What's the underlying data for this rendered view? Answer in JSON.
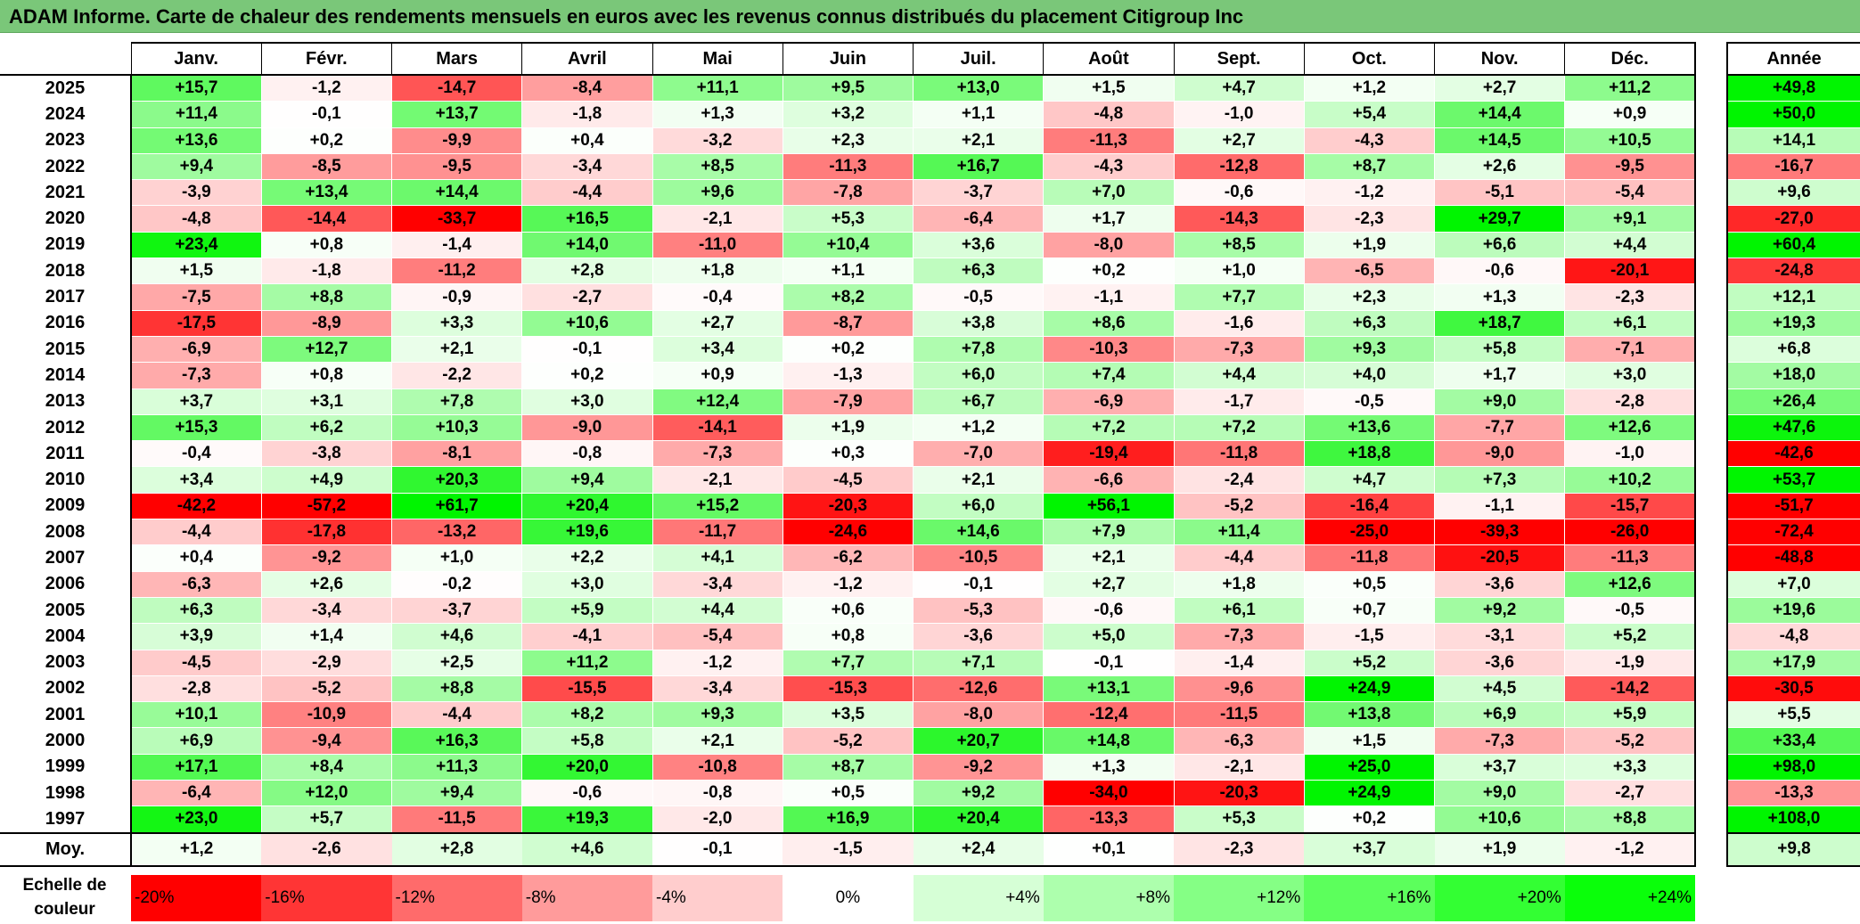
{
  "title": "ADAM Informe. Carte de chaleur des rendements mensuels en euros avec les revenus connus distribués du placement Citigroup Inc",
  "chart_data": {
    "type": "heatmap",
    "title": "ADAM Informe. Carte de chaleur des rendements mensuels en euros avec les revenus connus distribués du placement Citigroup Inc",
    "columns": [
      "Janv.",
      "Févr.",
      "Mars",
      "Avril",
      "Mai",
      "Juin",
      "Juil.",
      "Août",
      "Sept.",
      "Oct.",
      "Nov.",
      "Déc."
    ],
    "year_column_label": "Année",
    "rows": [
      {
        "year": "2025",
        "values": [
          "+15,7",
          "-1,2",
          "-14,7",
          "-8,4",
          "+11,1",
          "+9,5",
          "+13,0",
          "+1,5",
          "+4,7",
          "+1,2",
          "+2,7",
          "+11,2"
        ],
        "annual": "+49,8"
      },
      {
        "year": "2024",
        "values": [
          "+11,4",
          "-0,1",
          "+13,7",
          "-1,8",
          "+1,3",
          "+3,2",
          "+1,1",
          "-4,8",
          "-1,0",
          "+5,4",
          "+14,4",
          "+0,9"
        ],
        "annual": "+50,0"
      },
      {
        "year": "2023",
        "values": [
          "+13,6",
          "+0,2",
          "-9,9",
          "+0,4",
          "-3,2",
          "+2,3",
          "+2,1",
          "-11,3",
          "+2,7",
          "-4,3",
          "+14,5",
          "+10,5"
        ],
        "annual": "+14,1"
      },
      {
        "year": "2022",
        "values": [
          "+9,4",
          "-8,5",
          "-9,5",
          "-3,4",
          "+8,5",
          "-11,3",
          "+16,7",
          "-4,3",
          "-12,8",
          "+8,7",
          "+2,6",
          "-9,5"
        ],
        "annual": "-16,7"
      },
      {
        "year": "2021",
        "values": [
          "-3,9",
          "+13,4",
          "+14,4",
          "-4,4",
          "+9,6",
          "-7,8",
          "-3,7",
          "+7,0",
          "-0,6",
          "-1,2",
          "-5,1",
          "-5,4"
        ],
        "annual": "+9,6"
      },
      {
        "year": "2020",
        "values": [
          "-4,8",
          "-14,4",
          "-33,7",
          "+16,5",
          "-2,1",
          "+5,3",
          "-6,4",
          "+1,7",
          "-14,3",
          "-2,3",
          "+29,7",
          "+9,1"
        ],
        "annual": "-27,0"
      },
      {
        "year": "2019",
        "values": [
          "+23,4",
          "+0,8",
          "-1,4",
          "+14,0",
          "-11,0",
          "+10,4",
          "+3,6",
          "-8,0",
          "+8,5",
          "+1,9",
          "+6,6",
          "+4,4"
        ],
        "annual": "+60,4"
      },
      {
        "year": "2018",
        "values": [
          "+1,5",
          "-1,8",
          "-11,2",
          "+2,8",
          "+1,8",
          "+1,1",
          "+6,3",
          "+0,2",
          "+1,0",
          "-6,5",
          "-0,6",
          "-20,1"
        ],
        "annual": "-24,8"
      },
      {
        "year": "2017",
        "values": [
          "-7,5",
          "+8,8",
          "-0,9",
          "-2,7",
          "-0,4",
          "+8,2",
          "-0,5",
          "-1,1",
          "+7,7",
          "+2,3",
          "+1,3",
          "-2,3"
        ],
        "annual": "+12,1"
      },
      {
        "year": "2016",
        "values": [
          "-17,5",
          "-8,9",
          "+3,3",
          "+10,6",
          "+2,7",
          "-8,7",
          "+3,8",
          "+8,6",
          "-1,6",
          "+6,3",
          "+18,7",
          "+6,1"
        ],
        "annual": "+19,3"
      },
      {
        "year": "2015",
        "values": [
          "-6,9",
          "+12,7",
          "+2,1",
          "-0,1",
          "+3,4",
          "+0,2",
          "+7,8",
          "-10,3",
          "-7,3",
          "+9,3",
          "+5,8",
          "-7,1"
        ],
        "annual": "+6,8"
      },
      {
        "year": "2014",
        "values": [
          "-7,3",
          "+0,8",
          "-2,2",
          "+0,2",
          "+0,9",
          "-1,3",
          "+6,0",
          "+7,4",
          "+4,4",
          "+4,0",
          "+1,7",
          "+3,0"
        ],
        "annual": "+18,0"
      },
      {
        "year": "2013",
        "values": [
          "+3,7",
          "+3,1",
          "+7,8",
          "+3,0",
          "+12,4",
          "-7,9",
          "+6,7",
          "-6,9",
          "-1,7",
          "-0,5",
          "+9,0",
          "-2,8"
        ],
        "annual": "+26,4"
      },
      {
        "year": "2012",
        "values": [
          "+15,3",
          "+6,2",
          "+10,3",
          "-9,0",
          "-14,1",
          "+1,9",
          "+1,2",
          "+7,2",
          "+7,2",
          "+13,6",
          "-7,7",
          "+12,6"
        ],
        "annual": "+47,6"
      },
      {
        "year": "2011",
        "values": [
          "-0,4",
          "-3,8",
          "-8,1",
          "-0,8",
          "-7,3",
          "+0,3",
          "-7,0",
          "-19,4",
          "-11,8",
          "+18,8",
          "-9,0",
          "-1,0"
        ],
        "annual": "-42,6"
      },
      {
        "year": "2010",
        "values": [
          "+3,4",
          "+4,9",
          "+20,3",
          "+9,4",
          "-2,1",
          "-4,5",
          "+2,1",
          "-6,6",
          "-2,4",
          "+4,7",
          "+7,3",
          "+10,2"
        ],
        "annual": "+53,7"
      },
      {
        "year": "2009",
        "values": [
          "-42,2",
          "-57,2",
          "+61,7",
          "+20,4",
          "+15,2",
          "-20,3",
          "+6,0",
          "+56,1",
          "-5,2",
          "-16,4",
          "-1,1",
          "-15,7"
        ],
        "annual": "-51,7"
      },
      {
        "year": "2008",
        "values": [
          "-4,4",
          "-17,8",
          "-13,2",
          "+19,6",
          "-11,7",
          "-24,6",
          "+14,6",
          "+7,9",
          "+11,4",
          "-25,0",
          "-39,3",
          "-26,0"
        ],
        "annual": "-72,4"
      },
      {
        "year": "2007",
        "values": [
          "+0,4",
          "-9,2",
          "+1,0",
          "+2,2",
          "+4,1",
          "-6,2",
          "-10,5",
          "+2,1",
          "-4,4",
          "-11,8",
          "-20,5",
          "-11,3"
        ],
        "annual": "-48,8"
      },
      {
        "year": "2006",
        "values": [
          "-6,3",
          "+2,6",
          "-0,2",
          "+3,0",
          "-3,4",
          "-1,2",
          "-0,1",
          "+2,7",
          "+1,8",
          "+0,5",
          "-3,6",
          "+12,6"
        ],
        "annual": "+7,0"
      },
      {
        "year": "2005",
        "values": [
          "+6,3",
          "-3,4",
          "-3,7",
          "+5,9",
          "+4,4",
          "+0,6",
          "-5,3",
          "-0,6",
          "+6,1",
          "+0,7",
          "+9,2",
          "-0,5"
        ],
        "annual": "+19,6"
      },
      {
        "year": "2004",
        "values": [
          "+3,9",
          "+1,4",
          "+4,6",
          "-4,1",
          "-5,4",
          "+0,8",
          "-3,6",
          "+5,0",
          "-7,3",
          "-1,5",
          "-3,1",
          "+5,2"
        ],
        "annual": "-4,8"
      },
      {
        "year": "2003",
        "values": [
          "-4,5",
          "-2,9",
          "+2,5",
          "+11,2",
          "-1,2",
          "+7,7",
          "+7,1",
          "-0,1",
          "-1,4",
          "+5,2",
          "-3,6",
          "-1,9"
        ],
        "annual": "+17,9"
      },
      {
        "year": "2002",
        "values": [
          "-2,8",
          "-5,2",
          "+8,8",
          "-15,5",
          "-3,4",
          "-15,3",
          "-12,6",
          "+13,1",
          "-9,6",
          "+24,9",
          "+4,5",
          "-14,2"
        ],
        "annual": "-30,5"
      },
      {
        "year": "2001",
        "values": [
          "+10,1",
          "-10,9",
          "-4,4",
          "+8,2",
          "+9,3",
          "+3,5",
          "-8,0",
          "-12,4",
          "-11,5",
          "+13,8",
          "+6,9",
          "+5,9"
        ],
        "annual": "+5,5"
      },
      {
        "year": "2000",
        "values": [
          "+6,9",
          "-9,4",
          "+16,3",
          "+5,8",
          "+2,1",
          "-5,2",
          "+20,7",
          "+14,8",
          "-6,3",
          "+1,5",
          "-7,3",
          "-5,2"
        ],
        "annual": "+33,4"
      },
      {
        "year": "1999",
        "values": [
          "+17,1",
          "+8,4",
          "+11,3",
          "+20,0",
          "-10,8",
          "+8,7",
          "-9,2",
          "+1,3",
          "-2,1",
          "+25,0",
          "+3,7",
          "+3,3"
        ],
        "annual": "+98,0"
      },
      {
        "year": "1998",
        "values": [
          "-6,4",
          "+12,0",
          "+9,4",
          "-0,6",
          "-0,8",
          "+0,5",
          "+9,2",
          "-34,0",
          "-20,3",
          "+24,9",
          "+9,0",
          "-2,7"
        ],
        "annual": "-13,3"
      },
      {
        "year": "1997",
        "values": [
          "+23,0",
          "+5,7",
          "-11,5",
          "+19,3",
          "-2,0",
          "+16,9",
          "+20,4",
          "-13,3",
          "+5,3",
          "+0,2",
          "+10,6",
          "+8,8"
        ],
        "annual": "+108,0"
      }
    ],
    "average": {
      "label": "Moy.",
      "values": [
        "+1,2",
        "-2,6",
        "+2,8",
        "+4,6",
        "-0,1",
        "-1,5",
        "+2,4",
        "+0,1",
        "-2,3",
        "+3,7",
        "+1,9",
        "-1,2"
      ],
      "annual": "+9,8"
    },
    "scale": {
      "label": "Echelle de couleur",
      "steps": [
        {
          "label": "-20%",
          "value": -20,
          "color": "#ff0000",
          "align": "left"
        },
        {
          "label": "-16%",
          "value": -16,
          "color": "#ff3535",
          "align": "left"
        },
        {
          "label": "-12%",
          "value": -12,
          "color": "#ff6b6b",
          "align": "left"
        },
        {
          "label": "-8%",
          "value": -8,
          "color": "#ff9b9b",
          "align": "left"
        },
        {
          "label": "-4%",
          "value": -4,
          "color": "#ffcdcd",
          "align": "left"
        },
        {
          "label": "0%",
          "value": 0,
          "color": "#ffffff",
          "align": "center"
        },
        {
          "label": "+4%",
          "value": 4,
          "color": "#d6ffd6",
          "align": "right"
        },
        {
          "label": "+8%",
          "value": 8,
          "color": "#adffad",
          "align": "right"
        },
        {
          "label": "+12%",
          "value": 12,
          "color": "#85ff85",
          "align": "right"
        },
        {
          "label": "+16%",
          "value": 16,
          "color": "#5cff5c",
          "align": "right"
        },
        {
          "label": "+20%",
          "value": 20,
          "color": "#33ff33",
          "align": "right"
        },
        {
          "label": "+24%",
          "value": 24,
          "color": "#0aff0a",
          "align": "right"
        }
      ]
    }
  }
}
